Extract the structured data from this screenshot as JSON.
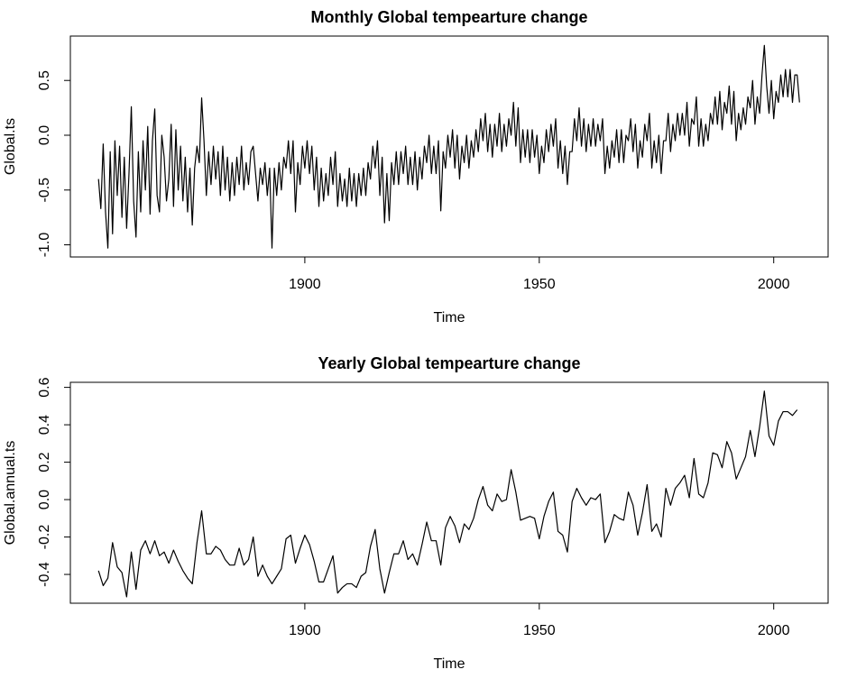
{
  "chart_data": [
    {
      "type": "line",
      "title": "Monthly Global tempearture change",
      "xlabel": "Time",
      "ylabel": "Global.ts",
      "color": "#000000",
      "xlim": [
        1850,
        2011.6
      ],
      "ylim": [
        -1.111,
        0.905
      ],
      "xticks": [
        1900,
        1950,
        2000
      ],
      "yticks": [
        {
          "value": -1,
          "label": "-1.0"
        },
        -0.5,
        {
          "value": 0,
          "label": "0.0"
        },
        0.5
      ],
      "x": [
        1856,
        1856.5,
        1857,
        1857.5,
        1858,
        1858.5,
        1859,
        1859.5,
        1860,
        1860.5,
        1861,
        1861.5,
        1862,
        1862.5,
        1863,
        1863.5,
        1864,
        1864.5,
        1865,
        1865.5,
        1866,
        1866.5,
        1867,
        1867.5,
        1868,
        1868.5,
        1869,
        1869.5,
        1870,
        1870.5,
        1871,
        1871.5,
        1872,
        1872.5,
        1873,
        1873.5,
        1874,
        1874.5,
        1875,
        1875.5,
        1876,
        1876.5,
        1877,
        1877.5,
        1878,
        1878.5,
        1879,
        1879.5,
        1880,
        1880.5,
        1881,
        1881.5,
        1882,
        1882.5,
        1883,
        1883.5,
        1884,
        1884.5,
        1885,
        1885.5,
        1886,
        1886.5,
        1887,
        1887.5,
        1888,
        1888.5,
        1889,
        1889.5,
        1890,
        1890.5,
        1891,
        1891.5,
        1892,
        1892.5,
        1893,
        1893.5,
        1894,
        1894.5,
        1895,
        1895.5,
        1896,
        1896.5,
        1897,
        1897.5,
        1898,
        1898.5,
        1899,
        1899.5,
        1900,
        1900.5,
        1901,
        1901.5,
        1902,
        1902.5,
        1903,
        1903.5,
        1904,
        1904.5,
        1905,
        1905.5,
        1906,
        1906.5,
        1907,
        1907.5,
        1908,
        1908.5,
        1909,
        1909.5,
        1910,
        1910.5,
        1911,
        1911.5,
        1912,
        1912.5,
        1913,
        1913.5,
        1914,
        1914.5,
        1915,
        1915.5,
        1916,
        1916.5,
        1917,
        1917.5,
        1918,
        1918.5,
        1919,
        1919.5,
        1920,
        1920.5,
        1921,
        1921.5,
        1922,
        1922.5,
        1923,
        1923.5,
        1924,
        1924.5,
        1925,
        1925.5,
        1926,
        1926.5,
        1927,
        1927.5,
        1928,
        1928.5,
        1929,
        1929.5,
        1930,
        1930.5,
        1931,
        1931.5,
        1932,
        1932.5,
        1933,
        1933.5,
        1934,
        1934.5,
        1935,
        1935.5,
        1936,
        1936.5,
        1937,
        1937.5,
        1938,
        1938.5,
        1939,
        1939.5,
        1940,
        1940.5,
        1941,
        1941.5,
        1942,
        1942.5,
        1943,
        1943.5,
        1944,
        1944.5,
        1945,
        1945.5,
        1946,
        1946.5,
        1947,
        1947.5,
        1948,
        1948.5,
        1949,
        1949.5,
        1950,
        1950.5,
        1951,
        1951.5,
        1952,
        1952.5,
        1953,
        1953.5,
        1954,
        1954.5,
        1955,
        1955.5,
        1956,
        1956.5,
        1957,
        1957.5,
        1958,
        1958.5,
        1959,
        1959.5,
        1960,
        1960.5,
        1961,
        1961.5,
        1962,
        1962.5,
        1963,
        1963.5,
        1964,
        1964.5,
        1965,
        1965.5,
        1966,
        1966.5,
        1967,
        1967.5,
        1968,
        1968.5,
        1969,
        1969.5,
        1970,
        1970.5,
        1971,
        1971.5,
        1972,
        1972.5,
        1973,
        1973.5,
        1974,
        1974.5,
        1975,
        1975.5,
        1976,
        1976.5,
        1977,
        1977.5,
        1978,
        1978.5,
        1979,
        1979.5,
        1980,
        1980.5,
        1981,
        1981.5,
        1982,
        1982.5,
        1983,
        1983.5,
        1984,
        1984.5,
        1985,
        1985.5,
        1986,
        1986.5,
        1987,
        1987.5,
        1988,
        1988.5,
        1989,
        1989.5,
        1990,
        1990.5,
        1991,
        1991.5,
        1992,
        1992.5,
        1993,
        1993.5,
        1994,
        1994.5,
        1995,
        1995.5,
        1996,
        1996.5,
        1997,
        1997.5,
        1998,
        1998.5,
        1999,
        1999.5,
        2000,
        2000.5,
        2001,
        2001.5,
        2002,
        2002.5,
        2003,
        2003.5,
        2004,
        2004.5,
        2005,
        2005.5
      ],
      "values": [
        -0.4,
        -0.67,
        -0.08,
        -0.7,
        -1.03,
        -0.15,
        -0.9,
        -0.05,
        -0.55,
        -0.1,
        -0.75,
        -0.2,
        -0.85,
        -0.35,
        0.26,
        -0.6,
        -0.93,
        -0.15,
        -0.7,
        -0.05,
        -0.5,
        0.08,
        -0.72,
        -0.05,
        0.24,
        -0.55,
        -0.7,
        0.0,
        -0.2,
        -0.6,
        -0.4,
        0.1,
        -0.65,
        0.05,
        -0.5,
        -0.1,
        -0.6,
        -0.2,
        -0.7,
        -0.3,
        -0.82,
        -0.3,
        -0.1,
        -0.25,
        0.34,
        -0.05,
        -0.55,
        -0.15,
        -0.45,
        -0.1,
        -0.4,
        -0.15,
        -0.55,
        -0.1,
        -0.5,
        -0.2,
        -0.6,
        -0.25,
        -0.55,
        -0.2,
        -0.45,
        -0.1,
        -0.5,
        -0.25,
        -0.45,
        -0.15,
        -0.1,
        -0.35,
        -0.6,
        -0.3,
        -0.45,
        -0.25,
        -0.55,
        -0.3,
        -1.03,
        -0.3,
        -0.55,
        -0.25,
        -0.5,
        -0.2,
        -0.3,
        -0.05,
        -0.35,
        -0.05,
        -0.7,
        -0.25,
        -0.45,
        -0.1,
        -0.3,
        -0.05,
        -0.35,
        -0.1,
        -0.5,
        -0.2,
        -0.65,
        -0.3,
        -0.6,
        -0.35,
        -0.55,
        -0.2,
        -0.45,
        -0.15,
        -0.65,
        -0.35,
        -0.6,
        -0.4,
        -0.65,
        -0.3,
        -0.6,
        -0.35,
        -0.65,
        -0.35,
        -0.55,
        -0.3,
        -0.55,
        -0.25,
        -0.4,
        -0.1,
        -0.3,
        -0.05,
        -0.55,
        -0.2,
        -0.8,
        -0.35,
        -0.78,
        -0.25,
        -0.45,
        -0.15,
        -0.45,
        -0.15,
        -0.35,
        -0.1,
        -0.45,
        -0.2,
        -0.45,
        -0.15,
        -0.5,
        -0.2,
        -0.4,
        -0.1,
        -0.25,
        0.0,
        -0.35,
        -0.1,
        -0.35,
        -0.05,
        -0.69,
        -0.15,
        -0.3,
        0.0,
        -0.2,
        0.05,
        -0.3,
        0.0,
        -0.4,
        -0.1,
        -0.25,
        0.0,
        -0.3,
        -0.05,
        -0.2,
        0.05,
        -0.15,
        0.15,
        -0.05,
        0.2,
        -0.15,
        0.1,
        -0.2,
        0.1,
        -0.1,
        0.2,
        -0.15,
        0.1,
        -0.1,
        0.15,
        0.0,
        0.3,
        -0.1,
        0.25,
        -0.25,
        0.05,
        -0.2,
        0.05,
        -0.25,
        0.05,
        -0.2,
        0.0,
        -0.35,
        -0.1,
        -0.25,
        0.05,
        -0.15,
        0.1,
        -0.1,
        0.15,
        -0.3,
        -0.05,
        -0.35,
        -0.1,
        -0.45,
        -0.15,
        -0.15,
        0.15,
        -0.05,
        0.25,
        -0.1,
        0.15,
        -0.15,
        0.1,
        -0.1,
        0.15,
        -0.1,
        0.1,
        -0.05,
        0.15,
        -0.35,
        -0.1,
        -0.3,
        -0.05,
        -0.2,
        0.05,
        -0.25,
        0.05,
        -0.25,
        0.0,
        -0.05,
        0.15,
        -0.15,
        0.1,
        -0.3,
        -0.05,
        -0.2,
        0.1,
        -0.05,
        0.2,
        -0.3,
        -0.05,
        -0.25,
        0.0,
        -0.35,
        -0.05,
        -0.05,
        0.2,
        -0.15,
        0.1,
        -0.05,
        0.2,
        0.0,
        0.2,
        0.0,
        0.3,
        -0.1,
        0.15,
        0.1,
        0.35,
        -0.1,
        0.15,
        -0.1,
        0.1,
        -0.05,
        0.2,
        0.1,
        0.35,
        0.1,
        0.4,
        0.05,
        0.3,
        0.2,
        0.45,
        0.1,
        0.4,
        -0.05,
        0.2,
        0.05,
        0.25,
        0.1,
        0.35,
        0.25,
        0.5,
        0.1,
        0.35,
        0.2,
        0.55,
        0.82,
        0.45,
        0.2,
        0.5,
        0.15,
        0.4,
        0.3,
        0.55,
        0.35,
        0.6,
        0.35,
        0.6,
        0.3,
        0.55,
        0.55,
        0.3
      ]
    },
    {
      "type": "line",
      "title": "Yearly Global tempearture change",
      "xlabel": "Time",
      "ylabel": "Global.annual.ts",
      "color": "#000000",
      "xlim": [
        1850,
        2011.6
      ],
      "ylim": [
        -0.554,
        0.627
      ],
      "xticks": [
        1900,
        1950,
        2000
      ],
      "yticks": [
        -0.4,
        -0.2,
        {
          "value": 0,
          "label": "0.0"
        },
        0.2,
        0.4,
        0.6
      ],
      "x": [
        1856,
        1857,
        1858,
        1859,
        1860,
        1861,
        1862,
        1863,
        1864,
        1865,
        1866,
        1867,
        1868,
        1869,
        1870,
        1871,
        1872,
        1873,
        1874,
        1875,
        1876,
        1877,
        1878,
        1879,
        1880,
        1881,
        1882,
        1883,
        1884,
        1885,
        1886,
        1887,
        1888,
        1889,
        1890,
        1891,
        1892,
        1893,
        1894,
        1895,
        1896,
        1897,
        1898,
        1899,
        1900,
        1901,
        1902,
        1903,
        1904,
        1905,
        1906,
        1907,
        1908,
        1909,
        1910,
        1911,
        1912,
        1913,
        1914,
        1915,
        1916,
        1917,
        1918,
        1919,
        1920,
        1921,
        1922,
        1923,
        1924,
        1925,
        1926,
        1927,
        1928,
        1929,
        1930,
        1931,
        1932,
        1933,
        1934,
        1935,
        1936,
        1937,
        1938,
        1939,
        1940,
        1941,
        1942,
        1943,
        1944,
        1945,
        1946,
        1947,
        1948,
        1949,
        1950,
        1951,
        1952,
        1953,
        1954,
        1955,
        1956,
        1957,
        1958,
        1959,
        1960,
        1961,
        1962,
        1963,
        1964,
        1965,
        1966,
        1967,
        1968,
        1969,
        1970,
        1971,
        1972,
        1973,
        1974,
        1975,
        1976,
        1977,
        1978,
        1979,
        1980,
        1981,
        1982,
        1983,
        1984,
        1985,
        1986,
        1987,
        1988,
        1989,
        1990,
        1991,
        1992,
        1993,
        1994,
        1995,
        1996,
        1997,
        1998,
        1999,
        2000,
        2001,
        2002,
        2003,
        2004,
        2005
      ],
      "values": [
        -0.38,
        -0.46,
        -0.42,
        -0.23,
        -0.36,
        -0.39,
        -0.52,
        -0.28,
        -0.48,
        -0.27,
        -0.22,
        -0.29,
        -0.22,
        -0.3,
        -0.28,
        -0.34,
        -0.27,
        -0.33,
        -0.38,
        -0.42,
        -0.45,
        -0.23,
        -0.06,
        -0.29,
        -0.29,
        -0.25,
        -0.27,
        -0.32,
        -0.35,
        -0.35,
        -0.26,
        -0.35,
        -0.32,
        -0.2,
        -0.41,
        -0.35,
        -0.41,
        -0.45,
        -0.41,
        -0.37,
        -0.21,
        -0.19,
        -0.34,
        -0.26,
        -0.19,
        -0.24,
        -0.33,
        -0.44,
        -0.44,
        -0.37,
        -0.3,
        -0.5,
        -0.47,
        -0.45,
        -0.45,
        -0.47,
        -0.41,
        -0.39,
        -0.25,
        -0.16,
        -0.37,
        -0.5,
        -0.39,
        -0.29,
        -0.29,
        -0.22,
        -0.32,
        -0.29,
        -0.35,
        -0.24,
        -0.12,
        -0.22,
        -0.22,
        -0.35,
        -0.15,
        -0.09,
        -0.14,
        -0.23,
        -0.13,
        -0.16,
        -0.1,
        0.0,
        0.07,
        -0.03,
        -0.06,
        0.03,
        -0.01,
        0.0,
        0.16,
        0.04,
        -0.11,
        -0.1,
        -0.09,
        -0.1,
        -0.21,
        -0.09,
        -0.01,
        0.04,
        -0.17,
        -0.19,
        -0.28,
        -0.01,
        0.06,
        0.01,
        -0.03,
        0.01,
        0.0,
        0.03,
        -0.23,
        -0.17,
        -0.08,
        -0.1,
        -0.11,
        0.04,
        -0.03,
        -0.19,
        -0.07,
        0.08,
        -0.17,
        -0.13,
        -0.2,
        0.06,
        -0.03,
        0.06,
        0.09,
        0.13,
        0.01,
        0.22,
        0.03,
        0.01,
        0.09,
        0.25,
        0.24,
        0.17,
        0.31,
        0.25,
        0.11,
        0.17,
        0.23,
        0.37,
        0.23,
        0.39,
        0.58,
        0.34,
        0.29,
        0.42,
        0.47,
        0.47,
        0.45,
        0.48
      ]
    }
  ]
}
